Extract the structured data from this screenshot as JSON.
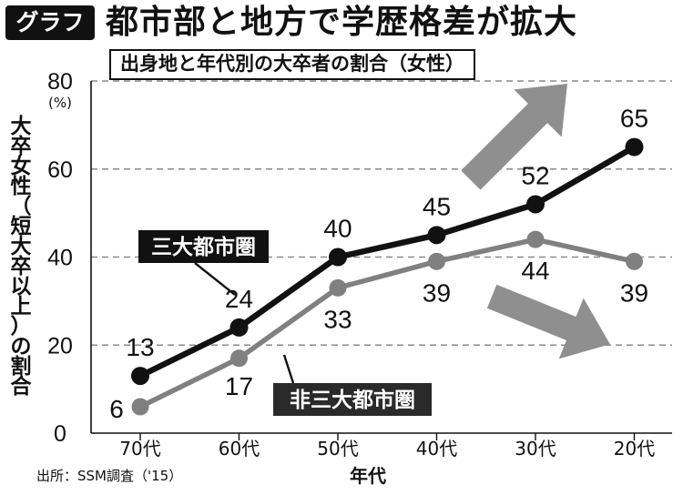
{
  "badge": "グラフ",
  "title": "都市部と地方で学歴格差が拡大",
  "subtitle": "出身地と年代別の大卒者の割合（女性）",
  "ylabel_chars": [
    "大",
    "卒",
    "女",
    "性",
    "（",
    "短",
    "大",
    "卒",
    "以",
    "上",
    "）",
    "の",
    "割",
    "合"
  ],
  "source": "出所：SSM調査（'15）",
  "colors": {
    "urban": "#111111",
    "rural": "#808080",
    "arrow": "#8f8f8f",
    "grid": "#8a8a8a"
  },
  "chart_data": {
    "type": "line",
    "title": "出身地と年代別の大卒者の割合（女性）",
    "xlabel": "年代",
    "ylabel": "大卒女性（短大卒以上）の割合",
    "yunit": "(%)",
    "categories": [
      "70代",
      "60代",
      "50代",
      "40代",
      "30代",
      "20代"
    ],
    "yticks": [
      0,
      20,
      40,
      60,
      80
    ],
    "ylim": [
      0,
      80
    ],
    "grid": true,
    "series": [
      {
        "name": "三大都市圏",
        "values": [
          13,
          24,
          40,
          45,
          52,
          65
        ]
      },
      {
        "name": "非三大都市圏",
        "values": [
          6,
          17,
          33,
          39,
          44,
          39
        ]
      }
    ]
  }
}
